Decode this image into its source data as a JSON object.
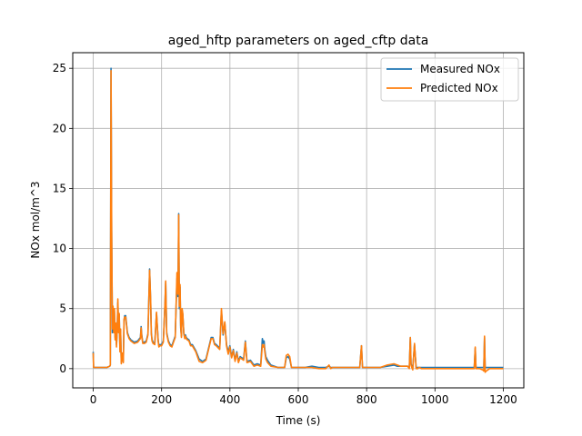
{
  "chart_data": {
    "type": "line",
    "title": "aged_hftp parameters on aged_cftp data",
    "xlabel": "Time (s)",
    "ylabel": "NOx mol/m^3",
    "xlim": [
      -60,
      1260
    ],
    "ylim": [
      -1.6,
      26.3
    ],
    "xticks": [
      0,
      200,
      400,
      600,
      800,
      1000,
      1200
    ],
    "yticks": [
      0,
      5,
      10,
      15,
      20,
      25
    ],
    "grid": true,
    "legend_position": "top-right",
    "series": [
      {
        "name": "Measured NOx",
        "color": "#1f77b4",
        "x": [
          0,
          1,
          2,
          10,
          20,
          40,
          48,
          50,
          52,
          54,
          56,
          58,
          60,
          62,
          64,
          66,
          68,
          70,
          72,
          74,
          76,
          78,
          80,
          82,
          85,
          88,
          90,
          92,
          95,
          100,
          105,
          110,
          120,
          130,
          138,
          140,
          142,
          145,
          150,
          155,
          160,
          165,
          168,
          170,
          172,
          175,
          180,
          185,
          190,
          192,
          195,
          200,
          205,
          210,
          212,
          215,
          220,
          225,
          230,
          235,
          240,
          245,
          248,
          250,
          252,
          254,
          256,
          258,
          260,
          262,
          265,
          268,
          270,
          272,
          275,
          280,
          285,
          290,
          300,
          310,
          320,
          330,
          340,
          345,
          350,
          355,
          360,
          370,
          375,
          380,
          385,
          390,
          395,
          400,
          405,
          410,
          415,
          420,
          425,
          430,
          440,
          445,
          450,
          460,
          470,
          480,
          490,
          495,
          498,
          500,
          502,
          505,
          510,
          520,
          540,
          550,
          560,
          565,
          570,
          575,
          580,
          590,
          600,
          620,
          640,
          660,
          680,
          690,
          695,
          700,
          720,
          760,
          780,
          785,
          788,
          790,
          792,
          795,
          800,
          820,
          840,
          860,
          880,
          890,
          900,
          920,
          925,
          928,
          930,
          932,
          935,
          940,
          945,
          950,
          952,
          955,
          960,
          980,
          1000,
          1040,
          1080,
          1110,
          1115,
          1118,
          1120,
          1122,
          1125,
          1130,
          1140,
          1143,
          1145,
          1147,
          1150,
          1160,
          1180,
          1200
        ],
        "values": [
          1.4,
          0.1,
          0.1,
          0.1,
          0.1,
          0.1,
          0.2,
          0.3,
          25.0,
          11.0,
          3.0,
          5.0,
          3.2,
          4.8,
          2.6,
          3.6,
          2.0,
          3.0,
          5.5,
          3.2,
          4.5,
          1.6,
          3.2,
          0.5,
          1.2,
          0.6,
          4.0,
          4.4,
          4.4,
          3.0,
          2.6,
          2.4,
          2.2,
          2.3,
          2.6,
          3.5,
          2.8,
          2.2,
          2.2,
          2.3,
          2.9,
          8.3,
          5.5,
          3.0,
          2.4,
          2.2,
          2.1,
          4.6,
          2.4,
          1.9,
          2.0,
          2.0,
          2.3,
          5.5,
          7.2,
          3.0,
          2.3,
          2.0,
          1.9,
          2.3,
          2.7,
          7.5,
          6.0,
          12.9,
          5.0,
          6.8,
          3.4,
          2.7,
          4.9,
          4.5,
          3.0,
          2.6,
          2.8,
          2.6,
          2.5,
          2.4,
          2.0,
          2.0,
          1.5,
          0.8,
          0.6,
          0.8,
          2.0,
          2.6,
          2.6,
          2.1,
          2.0,
          1.7,
          4.8,
          2.8,
          3.8,
          2.0,
          1.4,
          1.9,
          1.0,
          1.6,
          0.7,
          1.4,
          0.6,
          1.0,
          0.8,
          2.3,
          0.6,
          0.7,
          0.3,
          0.4,
          0.3,
          2.5,
          2.1,
          2.3,
          1.6,
          1.0,
          0.7,
          0.3,
          0.1,
          0.1,
          0.1,
          0.9,
          1.0,
          0.8,
          0.1,
          0.1,
          0.1,
          0.1,
          0.2,
          0.1,
          0.1,
          0.2,
          0.1,
          0.1,
          0.1,
          0.1,
          0.1,
          1.9,
          0.1,
          0.1,
          0.1,
          0.1,
          0.1,
          0.1,
          0.1,
          0.2,
          0.3,
          0.2,
          0.2,
          0.2,
          0.1,
          2.6,
          0.4,
          0.2,
          0.1,
          2.0,
          0.1,
          0.1,
          0.1,
          0.1,
          0.1,
          0.1,
          0.1,
          0.1,
          0.1,
          0.1,
          0.1,
          1.7,
          0.1,
          0.1,
          0.1,
          0.1,
          0.1,
          0.1,
          2.6,
          0.1,
          0.1,
          0.1,
          0.1,
          0.1
        ]
      },
      {
        "name": "Predicted NOx",
        "color": "#ff7f0e",
        "x": [
          0,
          1,
          2,
          10,
          20,
          40,
          48,
          50,
          52,
          54,
          56,
          58,
          60,
          62,
          64,
          66,
          68,
          70,
          72,
          74,
          76,
          78,
          80,
          82,
          85,
          88,
          90,
          92,
          95,
          100,
          105,
          110,
          120,
          130,
          138,
          140,
          142,
          145,
          150,
          155,
          160,
          165,
          168,
          170,
          172,
          175,
          180,
          185,
          190,
          192,
          195,
          200,
          205,
          210,
          212,
          215,
          220,
          225,
          230,
          235,
          240,
          245,
          248,
          250,
          252,
          254,
          256,
          258,
          260,
          262,
          265,
          268,
          270,
          272,
          275,
          280,
          285,
          290,
          300,
          310,
          320,
          330,
          340,
          345,
          350,
          355,
          360,
          370,
          375,
          380,
          385,
          390,
          395,
          400,
          405,
          410,
          415,
          420,
          425,
          430,
          440,
          445,
          450,
          460,
          470,
          480,
          490,
          495,
          498,
          500,
          502,
          505,
          510,
          520,
          540,
          550,
          560,
          565,
          570,
          575,
          580,
          590,
          600,
          620,
          640,
          660,
          680,
          690,
          695,
          700,
          720,
          760,
          780,
          785,
          788,
          790,
          792,
          795,
          800,
          820,
          840,
          860,
          880,
          890,
          900,
          920,
          925,
          928,
          930,
          932,
          935,
          940,
          945,
          950,
          952,
          955,
          960,
          980,
          1000,
          1040,
          1080,
          1110,
          1115,
          1118,
          1120,
          1122,
          1125,
          1130,
          1140,
          1143,
          1145,
          1147,
          1150,
          1160,
          1180,
          1200
        ],
        "values": [
          1.3,
          0.1,
          0.1,
          0.1,
          0.1,
          0.1,
          0.2,
          0.3,
          24.8,
          11.5,
          3.3,
          5.2,
          3.0,
          5.0,
          2.4,
          3.8,
          1.8,
          3.1,
          5.8,
          3.0,
          4.6,
          1.4,
          3.3,
          0.4,
          1.3,
          0.5,
          4.1,
          4.3,
          4.3,
          2.9,
          2.5,
          2.3,
          2.1,
          2.2,
          2.5,
          3.4,
          2.7,
          2.1,
          2.1,
          2.2,
          2.8,
          8.2,
          5.6,
          2.9,
          2.3,
          2.1,
          2.0,
          4.7,
          2.3,
          1.8,
          1.9,
          1.9,
          2.2,
          5.6,
          7.3,
          2.9,
          2.2,
          1.9,
          1.8,
          2.2,
          2.6,
          8.0,
          6.2,
          12.8,
          5.2,
          7.0,
          3.6,
          2.6,
          5.0,
          4.6,
          2.9,
          2.5,
          2.7,
          2.5,
          2.4,
          2.3,
          1.9,
          1.9,
          1.4,
          0.6,
          0.5,
          0.7,
          1.9,
          2.5,
          2.5,
          2.0,
          1.9,
          1.6,
          5.0,
          2.9,
          3.9,
          1.9,
          1.2,
          1.8,
          0.9,
          1.5,
          0.6,
          1.3,
          0.5,
          0.9,
          0.7,
          2.2,
          0.5,
          0.6,
          0.2,
          0.3,
          0.2,
          2.0,
          1.8,
          2.0,
          1.4,
          0.8,
          0.5,
          0.2,
          0.1,
          0.1,
          0.1,
          1.1,
          1.2,
          1.0,
          0.1,
          0.1,
          0.1,
          0.1,
          0.1,
          0.0,
          0.0,
          0.3,
          0.0,
          0.1,
          0.1,
          0.1,
          0.1,
          1.9,
          0.1,
          0.1,
          0.1,
          0.1,
          0.1,
          0.1,
          0.1,
          0.3,
          0.4,
          0.3,
          0.2,
          0.2,
          0.0,
          2.6,
          0.3,
          0.1,
          -0.1,
          2.1,
          0.0,
          0.0,
          0.1,
          0.1,
          0.0,
          0.0,
          0.0,
          0.0,
          0.0,
          0.0,
          0.0,
          1.8,
          0.0,
          0.0,
          0.0,
          0.0,
          -0.1,
          -0.2,
          2.7,
          -0.3,
          -0.2,
          0.0,
          0.0,
          0.0
        ]
      }
    ]
  }
}
